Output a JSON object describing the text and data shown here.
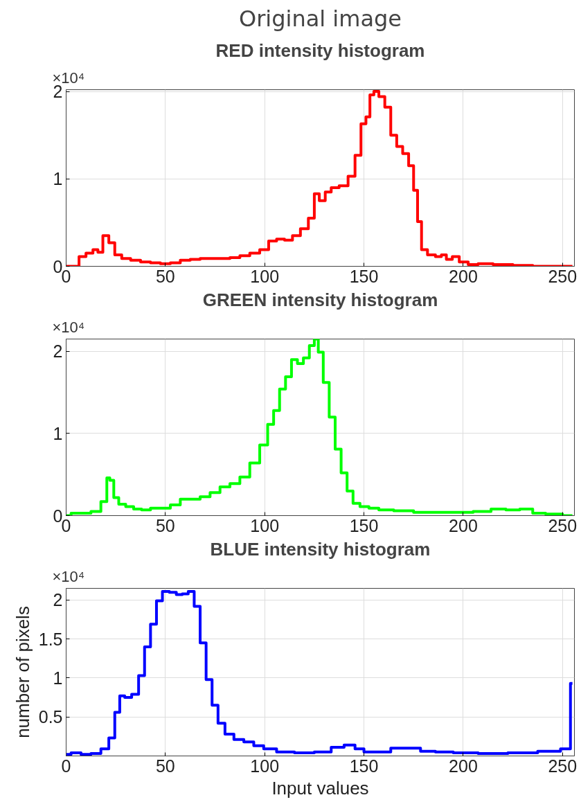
{
  "chart_data": [
    {
      "type": "step",
      "title": "Original image",
      "subtitle": "RED intensity histogram",
      "annotations": [
        "×10⁴"
      ],
      "xlim": [
        0,
        256
      ],
      "xticks": [
        0,
        50,
        100,
        150,
        200,
        250
      ],
      "ylim": [
        0,
        2.02
      ],
      "yticks": [
        0,
        1,
        2
      ],
      "grid": true,
      "series": [
        {
          "color": "#ff0000",
          "x": [
            0,
            5,
            8,
            12,
            15,
            17,
            20,
            23,
            26,
            30,
            35,
            40,
            45,
            50,
            55,
            60,
            65,
            70,
            75,
            80,
            85,
            90,
            95,
            100,
            104,
            108,
            112,
            116,
            120,
            124,
            126,
            129,
            132,
            135,
            140,
            144,
            147,
            150,
            152,
            154,
            156,
            159,
            162,
            165,
            168,
            171,
            174,
            176,
            178,
            180,
            184,
            188,
            190,
            193,
            196,
            200,
            205,
            210,
            220,
            230,
            240,
            255
          ],
          "values": [
            0.0,
            0.0,
            0.11,
            0.15,
            0.19,
            0.16,
            0.35,
            0.27,
            0.13,
            0.09,
            0.07,
            0.05,
            0.04,
            0.03,
            0.04,
            0.07,
            0.08,
            0.09,
            0.09,
            0.09,
            0.1,
            0.12,
            0.15,
            0.19,
            0.29,
            0.31,
            0.3,
            0.35,
            0.43,
            0.55,
            0.83,
            0.75,
            0.85,
            0.9,
            0.92,
            1.03,
            1.27,
            1.63,
            1.71,
            1.96,
            2.0,
            1.94,
            1.82,
            1.5,
            1.37,
            1.29,
            1.15,
            0.87,
            0.51,
            0.19,
            0.13,
            0.11,
            0.13,
            0.08,
            0.11,
            0.05,
            0.02,
            0.03,
            0.02,
            0.01,
            0.0,
            0.0
          ]
        }
      ]
    },
    {
      "type": "step",
      "title": "GREEN intensity histogram",
      "annotations": [
        "×10⁴"
      ],
      "xlim": [
        0,
        256
      ],
      "xticks": [
        0,
        50,
        100,
        150,
        200,
        250
      ],
      "ylim": [
        0,
        2.15
      ],
      "yticks": [
        0,
        1,
        2
      ],
      "grid": true,
      "series": [
        {
          "color": "#00ff00",
          "x": [
            0,
            5,
            10,
            15,
            20,
            21,
            23,
            25,
            28,
            32,
            36,
            40,
            45,
            50,
            55,
            60,
            65,
            70,
            75,
            80,
            85,
            90,
            95,
            100,
            103,
            106,
            109,
            112,
            115,
            118,
            121,
            124,
            126,
            128,
            131,
            134,
            137,
            140,
            143,
            146,
            150,
            155,
            160,
            170,
            180,
            190,
            200,
            210,
            218,
            225,
            232,
            238,
            245,
            255
          ],
          "values": [
            0.0,
            0.03,
            0.03,
            0.05,
            0.17,
            0.46,
            0.43,
            0.22,
            0.14,
            0.11,
            0.08,
            0.07,
            0.09,
            0.09,
            0.13,
            0.2,
            0.2,
            0.23,
            0.28,
            0.35,
            0.39,
            0.47,
            0.64,
            0.86,
            1.11,
            1.28,
            1.54,
            1.69,
            1.9,
            1.85,
            1.92,
            2.07,
            2.15,
            1.99,
            1.62,
            1.2,
            0.81,
            0.52,
            0.3,
            0.15,
            0.11,
            0.09,
            0.07,
            0.06,
            0.04,
            0.04,
            0.04,
            0.05,
            0.08,
            0.07,
            0.08,
            0.03,
            0.02,
            0.0
          ]
        }
      ]
    },
    {
      "type": "step",
      "title": "BLUE intensity histogram",
      "xlabel": "Input values",
      "ylabel": "number of pixels",
      "annotations": [
        "×10⁴"
      ],
      "xlim": [
        0,
        256
      ],
      "xticks": [
        0,
        50,
        100,
        150,
        200,
        250
      ],
      "ylim": [
        0,
        2.15
      ],
      "yticks": [
        0.5,
        1,
        1.5,
        2
      ],
      "grid": true,
      "series": [
        {
          "color": "#0000ff",
          "x": [
            0,
            5,
            10,
            15,
            20,
            23,
            26,
            28,
            31,
            35,
            38,
            41,
            44,
            47,
            50,
            54,
            57,
            60,
            63,
            66,
            69,
            72,
            75,
            78,
            82,
            87,
            92,
            97,
            102,
            110,
            120,
            130,
            137,
            143,
            148,
            152,
            160,
            167,
            175,
            182,
            190,
            200,
            215,
            230,
            245,
            253,
            255
          ],
          "values": [
            0.02,
            0.04,
            0.02,
            0.03,
            0.09,
            0.23,
            0.56,
            0.77,
            0.75,
            0.79,
            1.03,
            1.4,
            1.69,
            1.99,
            2.11,
            2.1,
            2.07,
            2.08,
            2.11,
            1.92,
            1.45,
            0.98,
            0.65,
            0.42,
            0.28,
            0.21,
            0.18,
            0.13,
            0.09,
            0.05,
            0.04,
            0.05,
            0.11,
            0.14,
            0.09,
            0.05,
            0.05,
            0.1,
            0.1,
            0.06,
            0.05,
            0.04,
            0.03,
            0.04,
            0.06,
            0.09,
            0.93
          ]
        }
      ]
    }
  ]
}
